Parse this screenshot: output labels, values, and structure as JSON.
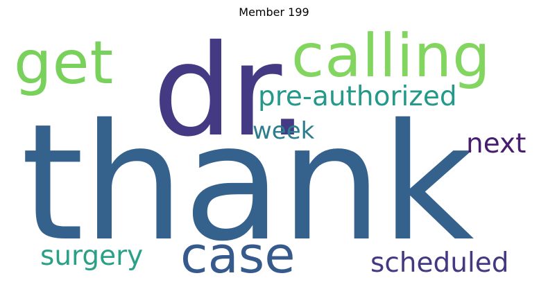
{
  "title": "Member 199",
  "words": {
    "thank": {
      "text": "thank",
      "color": "#35628d"
    },
    "dr": {
      "text": "dr.",
      "color": "#433a83"
    },
    "calling": {
      "text": "calling",
      "color": "#82d55f"
    },
    "get": {
      "text": "get",
      "color": "#78d15a"
    },
    "preauth": {
      "text": "pre-authorized",
      "color": "#24998a"
    },
    "week": {
      "text": "week",
      "color": "#2c7e8e"
    },
    "next": {
      "text": "next",
      "color": "#481d6f"
    },
    "case": {
      "text": "case",
      "color": "#375a8c"
    },
    "surgery": {
      "text": "surgery",
      "color": "#2aa187"
    },
    "scheduled": {
      "text": "scheduled",
      "color": "#453882"
    }
  }
}
